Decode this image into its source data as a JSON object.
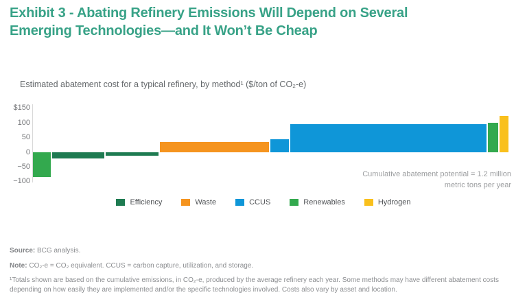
{
  "title": "Exhibit 3 - Abating Refinery Emissions Will Depend on Several Emerging Technologies—and It Won’t Be Cheap",
  "subtitle": "Estimated abatement cost for a typical refinery, by method¹ ($/ton of CO₂-e)",
  "chart_data": {
    "type": "bar",
    "variant": "marginal-abatement-cost-curve",
    "title": "Estimated abatement cost for a typical refinery, by method ($/ton of CO₂-e)",
    "xlabel": "Cumulative abatement potential (share of 1.2 million metric tons per year)",
    "ylabel": "$/ton of CO₂-e",
    "ylim": [
      -100,
      150
    ],
    "grid": false,
    "legend_position": "bottom-center",
    "y_ticks": [
      {
        "label": "$150",
        "value": 150
      },
      {
        "label": "100",
        "value": 100
      },
      {
        "label": "50",
        "value": 50
      },
      {
        "label": "0",
        "value": 0
      },
      {
        "label": "−50",
        "value": -50
      },
      {
        "label": "−100",
        "value": -100
      }
    ],
    "legend": [
      {
        "label": "Efficiency",
        "color": "#1e7b51"
      },
      {
        "label": "Waste",
        "color": "#f5941f"
      },
      {
        "label": "CCUS",
        "color": "#0f96d8"
      },
      {
        "label": "Renewables",
        "color": "#33a94e"
      },
      {
        "label": "Hydrogen",
        "color": "#f9c01d"
      }
    ],
    "bars": [
      {
        "method": "Renewables",
        "cost": -85,
        "width_pct": 3.7
      },
      {
        "method": "Efficiency",
        "cost": -22,
        "width_pct": 11.0
      },
      {
        "method": "Efficiency",
        "cost": -12,
        "width_pct": 11.0
      },
      {
        "method": "Waste",
        "cost": 35,
        "width_pct": 22.9
      },
      {
        "method": "CCUS",
        "cost": 45,
        "width_pct": 4.0
      },
      {
        "method": "CCUS",
        "cost": 95,
        "width_pct": 41.1
      },
      {
        "method": "Renewables",
        "cost": 100,
        "width_pct": 2.2
      },
      {
        "method": "Hydrogen",
        "cost": 125,
        "width_pct": 1.9
      }
    ],
    "annotation": "Cumulative abatement potential = 1.2 million metric tons per year"
  },
  "annotation": {
    "line1": "Cumulative abatement potential = 1.2 million",
    "line2": "metric tons per year"
  },
  "footer": {
    "source_label": "Source:",
    "source_text": " BCG analysis.",
    "note_label": "Note:",
    "note_text": " CO₂-e = CO₂ equivalent. CCUS = carbon capture, utilization, and storage.",
    "footnote": "¹Totals shown are based on the cumulative emissions, in CO₂-e, produced by the average refinery each year. Some methods may have different abatement costs depending on how easily they are implemented and/or the specific technologies involved. Costs also vary by asset and location."
  }
}
